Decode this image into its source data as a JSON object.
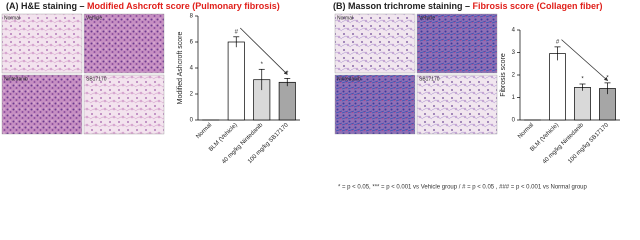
{
  "panels": [
    {
      "title": "(A) H&E staining – ",
      "title_highlight": "Modified Ashcroft score (Pulmonary fibrosis)",
      "image_labels": [
        "Normal",
        "Vehicle",
        "Nintedanib",
        "SB17170"
      ]
    },
    {
      "title": "(B) Masson trichrome staining – ",
      "title_highlight": "Fibrosis score (Collagen fiber)",
      "image_labels": [
        "Normal",
        "Vehicle",
        "Nintedanib",
        "SB17170"
      ]
    }
  ],
  "chart_data": [
    {
      "type": "bar",
      "y_label": "Modified Ashcroft score",
      "categories": [
        "Normal",
        "BLM (Vehicle)",
        "40 mg/kg Nintedanib",
        "100 mg/kg SB17170"
      ],
      "values": [
        0,
        6,
        3.1,
        2.9
      ],
      "errors": [
        0,
        0.4,
        0.8,
        0.3
      ],
      "annotations": [
        null,
        "#",
        "*",
        "*"
      ],
      "colors": [
        "#ffffff",
        "#ffffff",
        "#d9d9d9",
        "#a6a6a6"
      ],
      "ylim": [
        0,
        8
      ],
      "yticks": [
        0,
        2,
        4,
        6,
        8
      ]
    },
    {
      "type": "bar",
      "y_label": "Fibrosis score",
      "categories": [
        "Normal",
        "BLM (Vehicle)",
        "40 mg/kg Nintedanib",
        "100 mg/kg SB17170"
      ],
      "values": [
        0,
        2.95,
        1.45,
        1.4
      ],
      "errors": [
        0,
        0.3,
        0.15,
        0.25
      ],
      "annotations": [
        null,
        "#",
        "*",
        "*"
      ],
      "colors": [
        "#ffffff",
        "#ffffff",
        "#d9d9d9",
        "#a6a6a6"
      ],
      "ylim": [
        0,
        4
      ],
      "yticks": [
        0,
        1,
        2,
        3,
        4
      ]
    }
  ],
  "footnote": "* = p < 0.05, *** = p < 0.001 vs Vehicle group / # = p < 0.05 , ### = p < 0.001 vs Normal group"
}
